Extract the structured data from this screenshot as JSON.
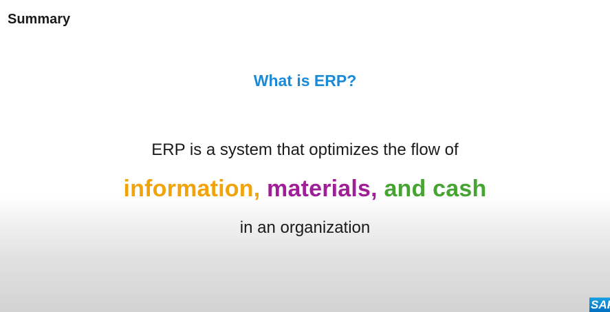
{
  "slide": {
    "title": "Summary",
    "question": "What is ERP?",
    "line1": "ERP is a system that optimizes the flow of",
    "highlight": {
      "information": "information,",
      "materials": "materials,",
      "and_cash": "and cash"
    },
    "line3": "in an organization"
  },
  "logo": {
    "text": "SAP"
  },
  "colors": {
    "question": "#1b8ad6",
    "information": "#f0a30a",
    "materials": "#9e1f96",
    "and_cash": "#47a332"
  }
}
